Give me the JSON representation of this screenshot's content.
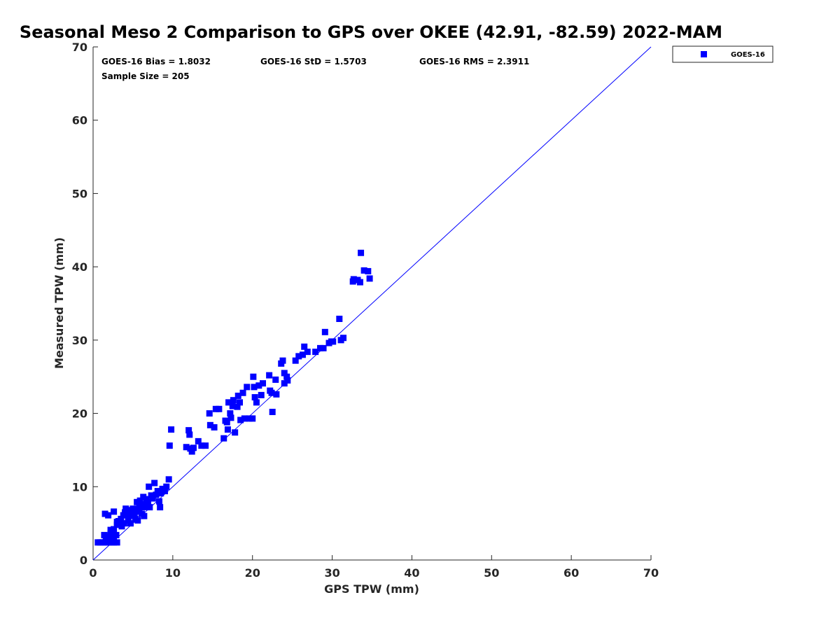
{
  "chart_data": {
    "type": "scatter",
    "title": "Seasonal Meso 2 Comparison to GPS over OKEE (42.91, -82.59) 2022-MAM",
    "xlabel": "GPS TPW (mm)",
    "ylabel": "Measured TPW (mm)",
    "xlim": [
      0,
      70
    ],
    "ylim": [
      0,
      70
    ],
    "xticks": [
      "0",
      "10",
      "20",
      "30",
      "40",
      "50",
      "60",
      "70"
    ],
    "yticks": [
      "0",
      "10",
      "20",
      "30",
      "40",
      "50",
      "60",
      "70"
    ],
    "grid": false,
    "legend": {
      "position": "top-right-outside",
      "entries": [
        "GOES-16"
      ]
    },
    "stats": {
      "bias": "GOES-16 Bias = 1.8032",
      "std": "GOES-16 StD = 1.5703",
      "rms": "GOES-16 RMS = 2.3911",
      "sample": "Sample Size = 205"
    },
    "reference_line": {
      "from": [
        0,
        0
      ],
      "to": [
        70,
        70
      ]
    },
    "colors": {
      "marker": "#0000ff",
      "line": "#0000ff",
      "axis": "#262626"
    },
    "series": [
      {
        "name": "GOES-16",
        "marker": "square",
        "points": [
          [
            0.6,
            2.4
          ],
          [
            0.9,
            2.4
          ],
          [
            1.2,
            2.4
          ],
          [
            1.5,
            2.4
          ],
          [
            1.9,
            2.4
          ],
          [
            2.3,
            2.4
          ],
          [
            2.6,
            2.4
          ],
          [
            3.0,
            2.4
          ],
          [
            1.4,
            3.4
          ],
          [
            1.8,
            3.2
          ],
          [
            2.2,
            3.6
          ],
          [
            2.6,
            3.0
          ],
          [
            2.9,
            3.4
          ],
          [
            1.6,
            2.8
          ],
          [
            2.4,
            2.8
          ],
          [
            2.2,
            4.1
          ],
          [
            2.6,
            4.2
          ],
          [
            3.0,
            4.8
          ],
          [
            3.2,
            5.3
          ],
          [
            3.6,
            4.6
          ],
          [
            3.9,
            5.0
          ],
          [
            1.5,
            6.3
          ],
          [
            1.9,
            6.1
          ],
          [
            2.6,
            6.6
          ],
          [
            3.5,
            5.6
          ],
          [
            3.8,
            6.1
          ],
          [
            4.0,
            6.5
          ],
          [
            4.1,
            7.0
          ],
          [
            4.4,
            5.4
          ],
          [
            4.5,
            6.0
          ],
          [
            4.6,
            6.8
          ],
          [
            4.7,
            5.0
          ],
          [
            4.9,
            6.3
          ],
          [
            5.0,
            7.0
          ],
          [
            5.2,
            6.1
          ],
          [
            5.3,
            5.6
          ],
          [
            5.5,
            6.6
          ],
          [
            5.5,
            7.9
          ],
          [
            5.6,
            5.4
          ],
          [
            5.7,
            6.9
          ],
          [
            5.8,
            7.4
          ],
          [
            5.9,
            8.1
          ],
          [
            6.1,
            6.3
          ],
          [
            6.2,
            7.6
          ],
          [
            6.3,
            8.6
          ],
          [
            6.4,
            6.0
          ],
          [
            6.5,
            7.2
          ],
          [
            6.7,
            8.3
          ],
          [
            6.9,
            7.9
          ],
          [
            7.0,
            10.0
          ],
          [
            7.1,
            7.2
          ],
          [
            7.3,
            8.8
          ],
          [
            7.5,
            8.4
          ],
          [
            7.7,
            10.5
          ],
          [
            7.9,
            8.9
          ],
          [
            8.1,
            9.4
          ],
          [
            8.3,
            8.0
          ],
          [
            8.4,
            7.2
          ],
          [
            8.5,
            9.1
          ],
          [
            8.7,
            9.7
          ],
          [
            9.0,
            9.4
          ],
          [
            9.2,
            10.0
          ],
          [
            9.5,
            11.0
          ],
          [
            3.0,
            5.2
          ],
          [
            5.8,
            7.0
          ],
          [
            6.6,
            7.6
          ],
          [
            9.6,
            15.6
          ],
          [
            9.8,
            17.8
          ],
          [
            11.7,
            15.4
          ],
          [
            12.0,
            17.7
          ],
          [
            12.1,
            17.1
          ],
          [
            12.2,
            15.2
          ],
          [
            12.4,
            14.8
          ],
          [
            12.6,
            15.3
          ],
          [
            13.2,
            16.2
          ],
          [
            13.6,
            15.6
          ],
          [
            14.1,
            15.6
          ],
          [
            14.6,
            20.0
          ],
          [
            14.7,
            18.4
          ],
          [
            15.2,
            18.1
          ],
          [
            15.4,
            20.6
          ],
          [
            15.8,
            20.6
          ],
          [
            16.4,
            16.6
          ],
          [
            16.6,
            19.0
          ],
          [
            16.8,
            18.8
          ],
          [
            16.9,
            17.8
          ],
          [
            17.0,
            21.5
          ],
          [
            17.2,
            20.0
          ],
          [
            17.3,
            19.4
          ],
          [
            17.5,
            21.0
          ],
          [
            17.6,
            21.8
          ],
          [
            17.8,
            17.4
          ],
          [
            18.1,
            20.9
          ],
          [
            18.2,
            22.4
          ],
          [
            18.4,
            21.5
          ],
          [
            18.5,
            19.1
          ],
          [
            18.8,
            22.8
          ],
          [
            19.0,
            19.3
          ],
          [
            19.3,
            23.6
          ],
          [
            19.6,
            19.3
          ],
          [
            20.0,
            19.3
          ],
          [
            20.1,
            25.0
          ],
          [
            20.2,
            23.6
          ],
          [
            20.3,
            22.2
          ],
          [
            20.5,
            21.5
          ],
          [
            20.8,
            23.8
          ],
          [
            21.1,
            22.5
          ],
          [
            21.3,
            24.1
          ],
          [
            22.1,
            25.2
          ],
          [
            22.2,
            23.1
          ],
          [
            22.4,
            22.8
          ],
          [
            22.5,
            20.2
          ],
          [
            22.9,
            24.6
          ],
          [
            23.0,
            22.6
          ],
          [
            23.6,
            26.8
          ],
          [
            23.8,
            27.2
          ],
          [
            24.0,
            24.1
          ],
          [
            24.0,
            25.5
          ],
          [
            24.3,
            25.0
          ],
          [
            24.4,
            24.5
          ],
          [
            25.4,
            27.2
          ],
          [
            25.8,
            27.8
          ],
          [
            26.3,
            28.0
          ],
          [
            26.5,
            29.1
          ],
          [
            26.9,
            28.4
          ],
          [
            27.9,
            28.4
          ],
          [
            28.5,
            28.9
          ],
          [
            28.9,
            28.9
          ],
          [
            29.1,
            31.1
          ],
          [
            29.6,
            29.6
          ],
          [
            29.9,
            29.8
          ],
          [
            30.1,
            29.8
          ],
          [
            30.9,
            32.9
          ],
          [
            31.1,
            30.0
          ],
          [
            31.4,
            30.3
          ],
          [
            32.6,
            38.0
          ],
          [
            32.7,
            38.3
          ],
          [
            33.2,
            38.2
          ],
          [
            33.5,
            37.9
          ],
          [
            33.6,
            41.9
          ],
          [
            34.0,
            39.5
          ],
          [
            34.5,
            39.4
          ],
          [
            34.7,
            38.4
          ]
        ]
      }
    ]
  }
}
